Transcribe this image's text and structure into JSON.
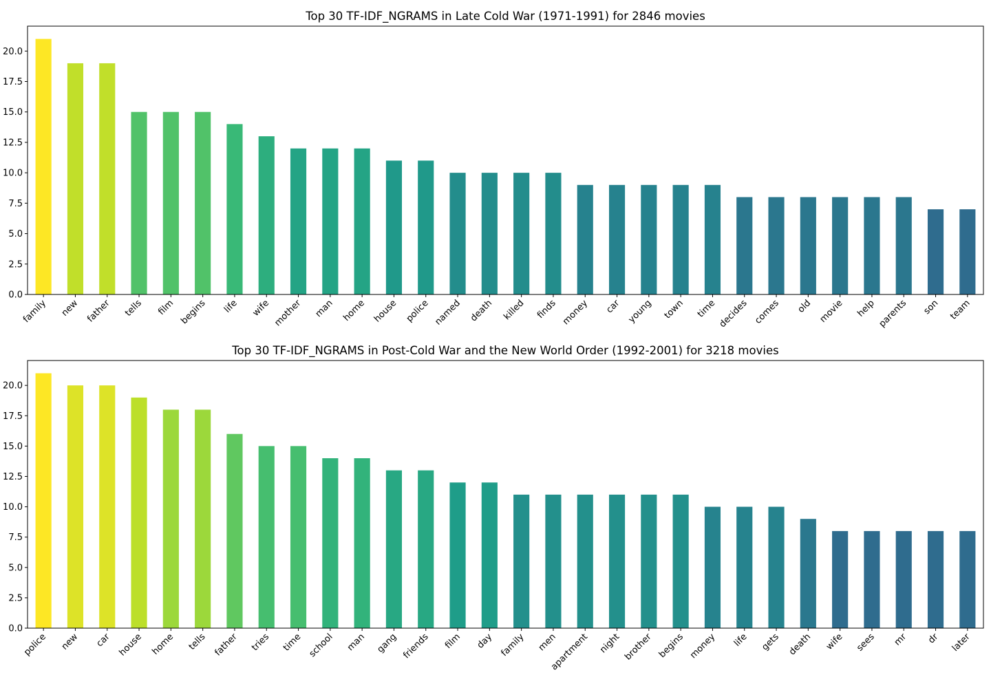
{
  "chart_data": [
    {
      "type": "bar",
      "title": "Top 30 TF-IDF_NGRAMS in Late Cold War (1971-1991) for 2846 movies",
      "xlabel": "",
      "ylabel": "",
      "ylim": [
        0,
        22.05
      ],
      "yticks": [
        "0.0",
        "2.5",
        "5.0",
        "7.5",
        "10.0",
        "12.5",
        "15.0",
        "17.5",
        "20.0"
      ],
      "categories": [
        "family",
        "new",
        "father",
        "tells",
        "film",
        "begins",
        "life",
        "wife",
        "mother",
        "man",
        "home",
        "house",
        "police",
        "named",
        "death",
        "killed",
        "finds",
        "money",
        "car",
        "young",
        "town",
        "time",
        "decides",
        "comes",
        "old",
        "movie",
        "help",
        "parents",
        "son",
        "team"
      ],
      "values": [
        21,
        19,
        19,
        15,
        15,
        15,
        14,
        13,
        12,
        12,
        12,
        11,
        11,
        10,
        10,
        10,
        10,
        9,
        9,
        9,
        9,
        9,
        8,
        8,
        8,
        8,
        8,
        8,
        7,
        7
      ],
      "colormap": "viridis",
      "grid": false,
      "legend": "none"
    },
    {
      "type": "bar",
      "title": "Top 30 TF-IDF_NGRAMS in Post-Cold War and the New World Order (1992-2001) for 3218 movies",
      "xlabel": "",
      "ylabel": "",
      "ylim": [
        0,
        22.05
      ],
      "yticks": [
        "0.0",
        "2.5",
        "5.0",
        "7.5",
        "10.0",
        "12.5",
        "15.0",
        "17.5",
        "20.0"
      ],
      "categories": [
        "police",
        "new",
        "car",
        "house",
        "home",
        "tells",
        "father",
        "tries",
        "time",
        "school",
        "man",
        "gang",
        "friends",
        "film",
        "day",
        "family",
        "men",
        "apartment",
        "night",
        "brother",
        "begins",
        "money",
        "life",
        "gets",
        "death",
        "wife",
        "sees",
        "mr",
        "dr",
        "later"
      ],
      "values": [
        21,
        20,
        20,
        19,
        18,
        18,
        16,
        15,
        15,
        14,
        14,
        13,
        13,
        12,
        12,
        11,
        11,
        11,
        11,
        11,
        11,
        10,
        10,
        10,
        9,
        8,
        8,
        8,
        8,
        8
      ],
      "colormap": "viridis",
      "grid": false,
      "legend": "none"
    }
  ]
}
